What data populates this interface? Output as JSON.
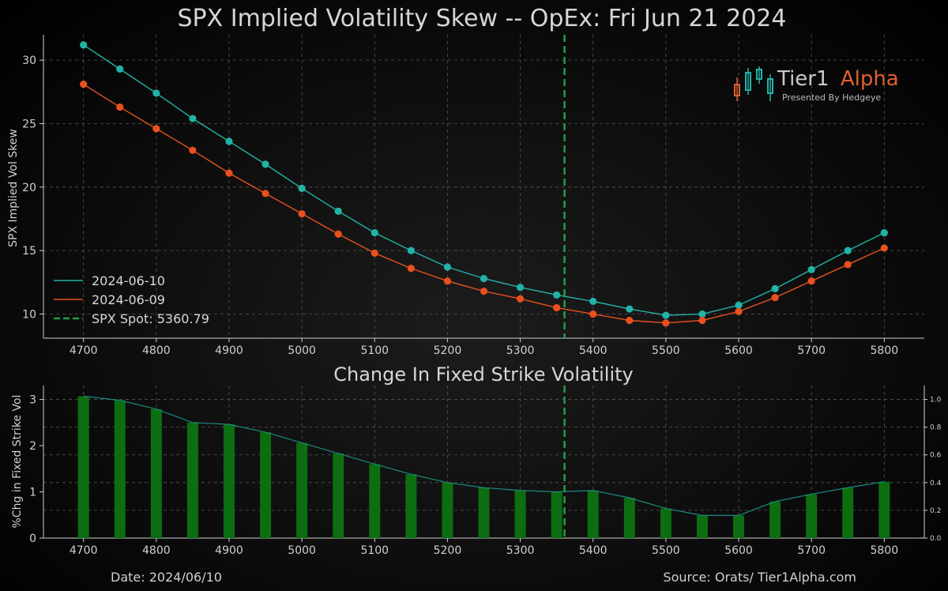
{
  "title": "SPX Implied Volatility Skew -- OpEx: Fri Jun 21 2024",
  "logo": {
    "word1": "Tier1",
    "word2": "Alpha",
    "tagline": "Presented By Hedgeye"
  },
  "footer": {
    "date": "Date: 2024/06/10",
    "source": "Source: Orats/ Tier1Alpha.com"
  },
  "colors": {
    "series_current": "#22b3a7",
    "series_prior": "#e8501e",
    "spot_line": "#1f9e4a",
    "bars": "#0c6e10",
    "bar_line": "#1d8a80",
    "logo_word1": "#c9c9c9",
    "logo_word2": "#e06030"
  },
  "chart_data": [
    {
      "type": "line",
      "title": "SPX Implied Volatility Skew -- OpEx: Fri Jun 21 2024",
      "xlabel": "",
      "ylabel": "SPX Implied Vol Skew",
      "x": [
        4700,
        4750,
        4800,
        4850,
        4900,
        4950,
        5000,
        5050,
        5100,
        5150,
        5200,
        5250,
        5300,
        5350,
        5400,
        5450,
        5500,
        5550,
        5600,
        5650,
        5700,
        5750,
        5800
      ],
      "xticks": [
        "4700",
        "4800",
        "4900",
        "5000",
        "5100",
        "5200",
        "5300",
        "5400",
        "5500",
        "5600",
        "5700",
        "5800"
      ],
      "yticks": [
        "10",
        "15",
        "20",
        "25",
        "30"
      ],
      "ylim": [
        8.1,
        32
      ],
      "xlim": [
        4645,
        5855
      ],
      "grid": true,
      "legend": "lower-left",
      "series": [
        {
          "name": "2024-06-10",
          "values": [
            31.2,
            29.3,
            27.4,
            25.4,
            23.6,
            21.8,
            19.9,
            18.1,
            16.4,
            15.0,
            13.7,
            12.8,
            12.1,
            11.5,
            11.0,
            10.4,
            9.9,
            10.0,
            10.7,
            12.0,
            13.5,
            15.0,
            16.4
          ]
        },
        {
          "name": "2024-06-09",
          "values": [
            28.1,
            26.3,
            24.6,
            22.9,
            21.1,
            19.5,
            17.9,
            16.3,
            14.8,
            13.6,
            12.6,
            11.8,
            11.2,
            10.5,
            10.0,
            9.5,
            9.3,
            9.5,
            10.2,
            11.3,
            12.6,
            13.9,
            15.2
          ]
        }
      ],
      "spot": {
        "label": "SPX Spot: 5360.79",
        "value": 5360.79
      }
    },
    {
      "type": "bar",
      "title": "Change In Fixed Strike Volatility",
      "ylabel": "%Chg in Fixed Strike Vol",
      "x": [
        4700,
        4750,
        4800,
        4850,
        4900,
        4950,
        5000,
        5050,
        5100,
        5150,
        5200,
        5250,
        5300,
        5350,
        5400,
        5450,
        5500,
        5550,
        5600,
        5650,
        5700,
        5750,
        5800
      ],
      "values": [
        3.07,
        2.98,
        2.79,
        2.5,
        2.46,
        2.29,
        2.06,
        1.83,
        1.6,
        1.38,
        1.2,
        1.09,
        1.03,
        1.0,
        1.03,
        0.87,
        0.64,
        0.49,
        0.49,
        0.79,
        0.95,
        1.09,
        1.22
      ],
      "xticks": [
        "4700",
        "4800",
        "4900",
        "5000",
        "5100",
        "5200",
        "5300",
        "5400",
        "5500",
        "5600",
        "5700",
        "5800"
      ],
      "yticks": [
        "0",
        "1",
        "2",
        "3"
      ],
      "ylim": [
        0,
        3.3
      ],
      "y2ticks": [
        "0.0",
        "0.2",
        "0.4",
        "0.6",
        "0.8",
        "1.0"
      ],
      "y2lim": [
        0,
        1.1
      ],
      "grid": true
    }
  ]
}
